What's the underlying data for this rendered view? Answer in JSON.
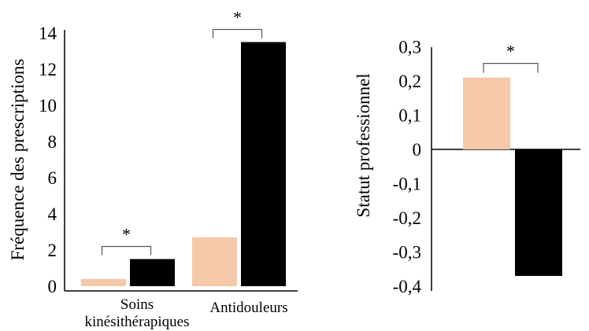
{
  "colors": {
    "group_a": "#f5c8a9",
    "group_b": "#000000",
    "axis": "#000000"
  },
  "chart_data": [
    {
      "type": "bar",
      "ylabel": "Fréquence des prescriptions",
      "ylim": [
        0,
        14
      ],
      "yticks": [
        "0",
        "2",
        "4",
        "6",
        "8",
        "10",
        "12",
        "14"
      ],
      "categories": [
        "Soins\nkinésithérapiques",
        "Antidouleurs"
      ],
      "series": [
        {
          "values": [
            0.4,
            2.7
          ],
          "color": "#f5c8a9"
        },
        {
          "values": [
            1.5,
            13.5
          ],
          "color": "#000000"
        }
      ],
      "annotations": [
        {
          "text": "*",
          "category": 0
        },
        {
          "text": "*",
          "category": 1
        }
      ],
      "grid": false,
      "legend": "none"
    },
    {
      "type": "bar",
      "ylabel": "Statut professionnel",
      "ylim": [
        -0.4,
        0.3
      ],
      "yticks": [
        "0,3",
        "0,2",
        "0,1",
        "0",
        "-0,1",
        "-0,2",
        "-0,3",
        "-0,4"
      ],
      "categories": [
        ""
      ],
      "series": [
        {
          "values": [
            0.21
          ],
          "color": "#f5c8a9"
        },
        {
          "values": [
            -0.37
          ],
          "color": "#000000"
        }
      ],
      "annotations": [
        {
          "text": "*",
          "category": 0
        }
      ],
      "grid": false,
      "legend": "none"
    }
  ]
}
